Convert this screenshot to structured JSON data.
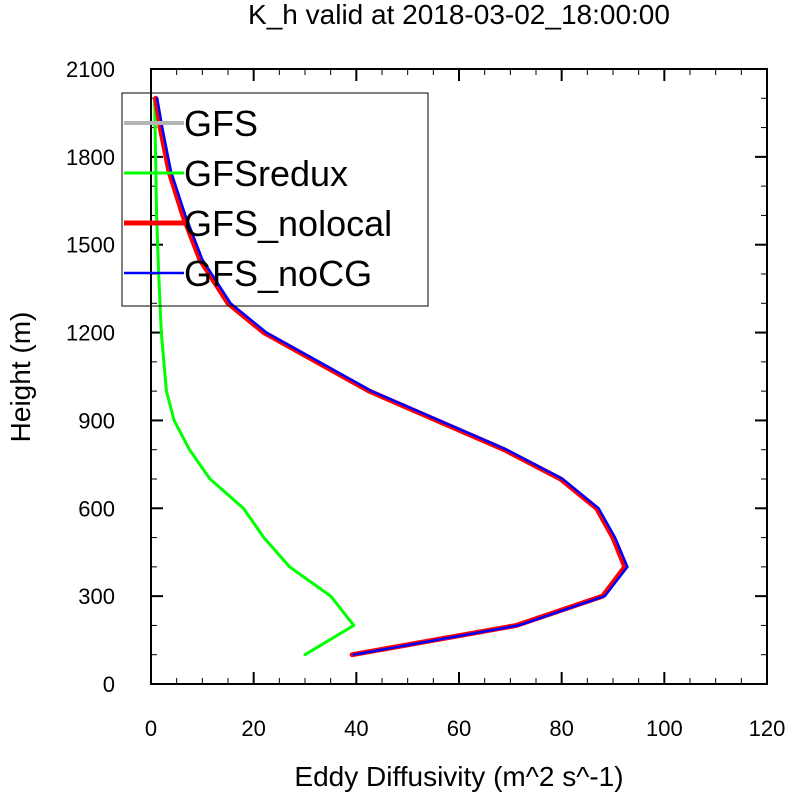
{
  "chart_data": {
    "type": "line",
    "title": "K_h valid at 2018-03-02_18:00:00",
    "xlabel": "Eddy Diffusivity (m^2 s^-1)",
    "ylabel": "Height (m)",
    "xlim": [
      0,
      120
    ],
    "ylim": [
      0,
      2100
    ],
    "xticks": [
      0,
      20,
      40,
      60,
      80,
      100,
      120
    ],
    "yticks": [
      0,
      300,
      600,
      900,
      1200,
      1500,
      1800,
      2100
    ],
    "x_minor_step": 5,
    "y_minor_step": 100,
    "grid": false,
    "legend_position": "top-left",
    "series": [
      {
        "name": "GFS",
        "color": "#b4b4b4",
        "width": 4,
        "points": [
          [
            39.2,
            100
          ],
          [
            71.2,
            200
          ],
          [
            88.0,
            300
          ],
          [
            92.3,
            400
          ],
          [
            90.0,
            500
          ],
          [
            86.8,
            600
          ],
          [
            79.8,
            700
          ],
          [
            68.8,
            800
          ],
          [
            42.5,
            1000
          ],
          [
            22.0,
            1200
          ],
          [
            15.0,
            1300
          ],
          [
            9.5,
            1450
          ],
          [
            6.2,
            1600
          ],
          [
            3.5,
            1750
          ],
          [
            1.8,
            1900
          ],
          [
            0.9,
            2000
          ]
        ]
      },
      {
        "name": "GFSredux",
        "color": "#00ff00",
        "width": 3,
        "points": [
          [
            30.0,
            100
          ],
          [
            39.5,
            200
          ],
          [
            35.0,
            300
          ],
          [
            27.0,
            400
          ],
          [
            22.0,
            500
          ],
          [
            18.0,
            600
          ],
          [
            11.5,
            700
          ],
          [
            7.5,
            800
          ],
          [
            4.5,
            900
          ],
          [
            3.0,
            1000
          ],
          [
            2.0,
            1200
          ],
          [
            1.5,
            1400
          ],
          [
            1.1,
            1600
          ],
          [
            0.9,
            1800
          ],
          [
            0.7,
            2000
          ]
        ]
      },
      {
        "name": "GFS_nolocal",
        "color": "#ff0000",
        "width": 5,
        "points": [
          [
            39.2,
            100
          ],
          [
            71.2,
            200
          ],
          [
            88.0,
            300
          ],
          [
            92.3,
            400
          ],
          [
            90.0,
            500
          ],
          [
            86.8,
            600
          ],
          [
            79.8,
            700
          ],
          [
            68.8,
            800
          ],
          [
            42.5,
            1000
          ],
          [
            22.0,
            1200
          ],
          [
            15.0,
            1300
          ],
          [
            9.5,
            1450
          ],
          [
            6.2,
            1600
          ],
          [
            3.5,
            1750
          ],
          [
            1.8,
            1900
          ],
          [
            0.9,
            2000
          ]
        ]
      },
      {
        "name": "GFS_noCG",
        "color": "#0000ff",
        "width": 2.5,
        "points": [
          [
            39.5,
            100
          ],
          [
            71.6,
            200
          ],
          [
            88.4,
            300
          ],
          [
            92.8,
            400
          ],
          [
            90.4,
            500
          ],
          [
            87.2,
            600
          ],
          [
            80.2,
            700
          ],
          [
            69.3,
            800
          ],
          [
            43.0,
            1000
          ],
          [
            22.5,
            1200
          ],
          [
            15.5,
            1300
          ],
          [
            10.0,
            1450
          ],
          [
            6.7,
            1600
          ],
          [
            3.9,
            1750
          ],
          [
            2.2,
            1900
          ],
          [
            1.2,
            2000
          ]
        ]
      }
    ]
  }
}
